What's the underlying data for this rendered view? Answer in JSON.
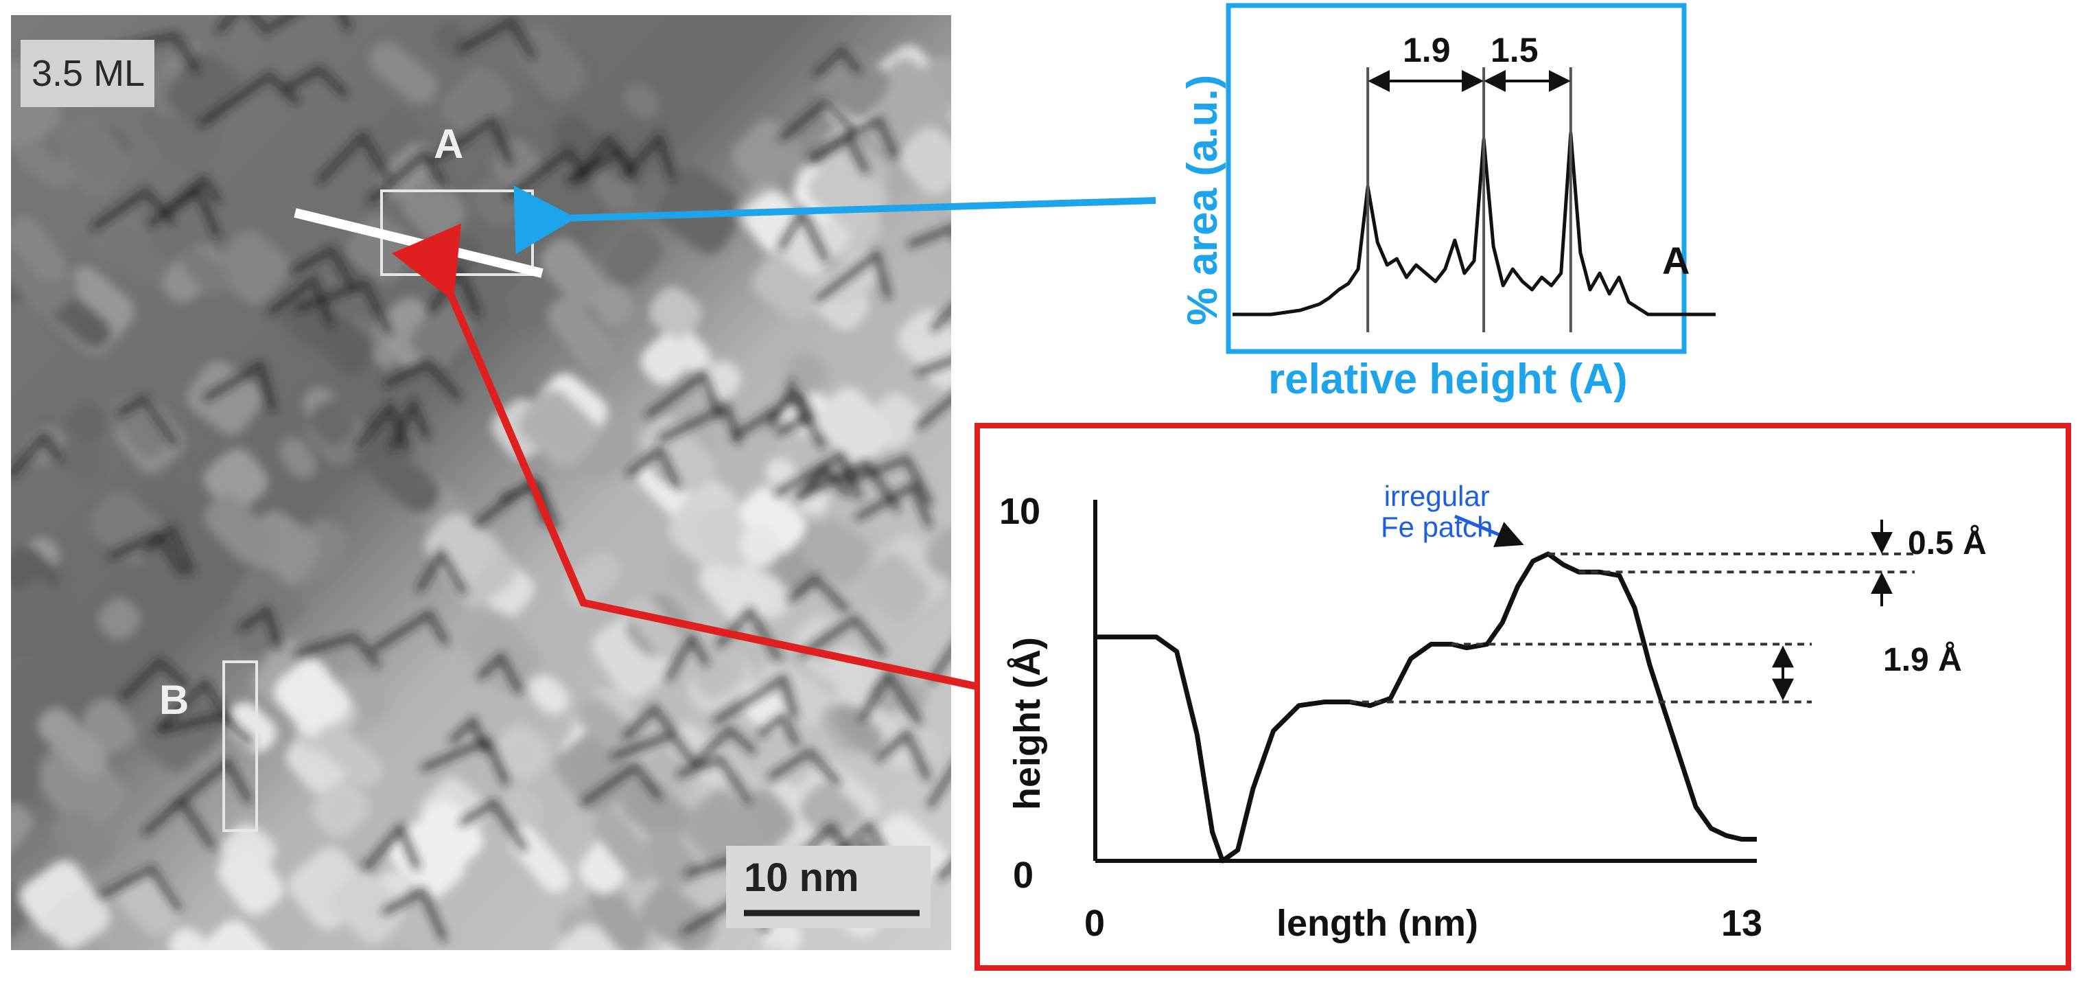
{
  "stm": {
    "coverage_label": "3.5 ML",
    "region_a_label": "A",
    "region_b_label": "B",
    "scale_bar_label": "10 nm"
  },
  "histogram": {
    "ylabel": "% area (a.u.)",
    "xlabel": "relative height (A)",
    "step_1_label": "1.9",
    "step_2_label": "1.5",
    "curve_label": "A",
    "border_color": "#1ea4ea"
  },
  "profile": {
    "annotation": [
      "irregular",
      "Fe patch"
    ],
    "step_small_label": "0.5 Å",
    "step_large_label": "1.9 Å",
    "border_color": "#e02020"
  },
  "colors": {
    "arrow_blue": "#1ea4ea",
    "arrow_red": "#e02020",
    "annotation_blue": "#1e5ee0"
  },
  "chart_data": [
    {
      "type": "line",
      "title": "",
      "xlabel": "length (nm)",
      "ylabel": "height (Å)",
      "xlim": [
        0,
        13
      ],
      "ylim": [
        0,
        10
      ],
      "x_ticks": [
        "0",
        "13"
      ],
      "y_ticks": [
        "0",
        "10"
      ],
      "grid": false,
      "series": [
        {
          "x": [
            0,
            0.5,
            1.2,
            1.6,
            2.0,
            2.3,
            2.5,
            2.8,
            3.1,
            3.5,
            4.0,
            4.5,
            5.0,
            5.4,
            5.8,
            6.2,
            6.6,
            7.0,
            7.3,
            7.7,
            8.0,
            8.3,
            8.6,
            8.9,
            9.2,
            9.5,
            9.9,
            10.3,
            10.6,
            10.9,
            11.2,
            11.5,
            11.8,
            12.1,
            12.4,
            12.7,
            13.0
          ],
          "y": [
            6.2,
            6.2,
            6.2,
            5.8,
            3.5,
            0.8,
            0.0,
            0.3,
            2.0,
            3.6,
            4.3,
            4.4,
            4.4,
            4.3,
            4.5,
            5.6,
            6.0,
            6.0,
            5.9,
            6.0,
            6.6,
            7.6,
            8.3,
            8.5,
            8.2,
            8.0,
            8.0,
            7.9,
            7.0,
            5.4,
            4.1,
            2.8,
            1.5,
            0.9,
            0.7,
            0.6,
            0.6
          ]
        }
      ]
    },
    {
      "type": "line",
      "title": "",
      "xlabel": "relative height (A)",
      "ylabel": "% area (a.u.)",
      "x_ticks": [],
      "y_ticks": [],
      "grid": false,
      "series": [
        {
          "name": "A",
          "x": [
            0.0,
            0.08,
            0.14,
            0.18,
            0.2,
            0.22,
            0.24,
            0.26,
            0.28,
            0.3,
            0.32,
            0.34,
            0.36,
            0.38,
            0.4,
            0.42,
            0.44,
            0.46,
            0.48,
            0.5,
            0.52,
            0.54,
            0.56,
            0.58,
            0.6,
            0.62,
            0.64,
            0.66,
            0.68,
            0.7,
            0.72,
            0.74,
            0.76,
            0.78,
            0.8,
            0.82,
            0.84,
            0.86,
            0.9,
            0.95,
            1.0
          ],
          "y": [
            0.0,
            0.0,
            0.02,
            0.05,
            0.08,
            0.12,
            0.15,
            0.22,
            0.62,
            0.35,
            0.24,
            0.27,
            0.18,
            0.24,
            0.2,
            0.16,
            0.22,
            0.36,
            0.2,
            0.26,
            0.85,
            0.33,
            0.14,
            0.22,
            0.16,
            0.12,
            0.18,
            0.14,
            0.2,
            0.88,
            0.3,
            0.12,
            0.2,
            0.1,
            0.18,
            0.06,
            0.03,
            0.0,
            0.0,
            0.0,
            0.0
          ]
        }
      ]
    }
  ]
}
